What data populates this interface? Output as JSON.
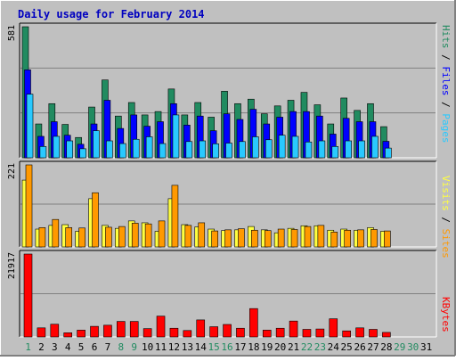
{
  "title": "Daily usage for February 2014",
  "colors": {
    "background": "#c0c0c0",
    "panel": "#c0c0c0",
    "border_dark": "#808080",
    "border_light": "#ffffff",
    "grid": "#808080",
    "title": "#0000c0",
    "hits": "#218b60",
    "files": "#0000ff",
    "pages": "#29c9ff",
    "visits": "#ffff40",
    "sites": "#ff9900",
    "kbytes": "#ff0000",
    "weekday_label": "#000000",
    "weekend_label": "#218b60"
  },
  "chart_data": [
    {
      "type": "bar",
      "name": "hits-files-pages",
      "categories": [
        "1",
        "2",
        "3",
        "4",
        "5",
        "6",
        "7",
        "8",
        "9",
        "10",
        "11",
        "12",
        "13",
        "14",
        "15",
        "16",
        "17",
        "18",
        "19",
        "20",
        "21",
        "22",
        "23",
        "24",
        "25",
        "26",
        "27",
        "28",
        "29",
        "30",
        "31"
      ],
      "weekend": [
        true,
        false,
        false,
        false,
        false,
        false,
        false,
        true,
        true,
        false,
        false,
        false,
        false,
        false,
        true,
        true,
        false,
        false,
        false,
        false,
        false,
        true,
        true,
        false,
        false,
        false,
        false,
        false,
        true,
        true,
        false
      ],
      "ylim": [
        0,
        581
      ],
      "max_label": "581",
      "series_labels": {
        "pages": "Pages",
        "files": "Files",
        "hits": "Hits",
        "sep": " / "
      },
      "series": [
        {
          "name": "Hits",
          "values": [
            581,
            150,
            240,
            148,
            90,
            225,
            345,
            185,
            245,
            190,
            205,
            305,
            190,
            245,
            180,
            295,
            240,
            260,
            195,
            230,
            255,
            290,
            235,
            150,
            265,
            210,
            240,
            138,
            0,
            0,
            0
          ]
        },
        {
          "name": "Files",
          "values": [
            390,
            95,
            160,
            100,
            60,
            150,
            255,
            130,
            190,
            140,
            160,
            240,
            145,
            185,
            120,
            195,
            170,
            215,
            150,
            180,
            205,
            205,
            185,
            105,
            175,
            160,
            160,
            73,
            0,
            0,
            0
          ]
        },
        {
          "name": "Pages",
          "values": [
            282,
            50,
            95,
            75,
            40,
            120,
            75,
            63,
            82,
            93,
            63,
            190,
            72,
            75,
            62,
            65,
            72,
            93,
            80,
            100,
            95,
            70,
            75,
            50,
            75,
            75,
            95,
            43,
            0,
            0,
            0
          ]
        }
      ]
    },
    {
      "type": "bar",
      "name": "visits-sites",
      "categories": [
        "1",
        "2",
        "3",
        "4",
        "5",
        "6",
        "7",
        "8",
        "9",
        "10",
        "11",
        "12",
        "13",
        "14",
        "15",
        "16",
        "17",
        "18",
        "19",
        "20",
        "21",
        "22",
        "23",
        "24",
        "25",
        "26",
        "27",
        "28",
        "29",
        "30",
        "31"
      ],
      "ylim": [
        0,
        221
      ],
      "max_label": "221",
      "series_labels": {
        "sites": "Sites",
        "visits": "Visits",
        "sep": " / "
      },
      "series": [
        {
          "name": "Visits",
          "values": [
            180,
            48,
            58,
            60,
            42,
            130,
            58,
            50,
            70,
            65,
            42,
            130,
            60,
            54,
            48,
            44,
            46,
            55,
            46,
            38,
            50,
            57,
            57,
            45,
            48,
            45,
            52,
            42,
            0,
            0,
            0
          ]
        },
        {
          "name": "Sites",
          "values": [
            221,
            52,
            74,
            52,
            51,
            146,
            53,
            55,
            64,
            62,
            70,
            166,
            58,
            65,
            43,
            46,
            49,
            45,
            44,
            48,
            47,
            55,
            58,
            40,
            45,
            46,
            47,
            43,
            0,
            0,
            0
          ]
        }
      ]
    },
    {
      "type": "bar",
      "name": "kbytes",
      "categories": [
        "1",
        "2",
        "3",
        "4",
        "5",
        "6",
        "7",
        "8",
        "9",
        "10",
        "11",
        "12",
        "13",
        "14",
        "15",
        "16",
        "17",
        "18",
        "19",
        "20",
        "21",
        "22",
        "23",
        "24",
        "25",
        "26",
        "27",
        "28",
        "29",
        "30",
        "31"
      ],
      "ylim": [
        0,
        21917
      ],
      "max_label": "21917",
      "series_labels": {
        "kbytes": "KBytes"
      },
      "series": [
        {
          "name": "KBytes",
          "values": [
            21917,
            2400,
            3360,
            1100,
            1800,
            2800,
            3100,
            4100,
            4100,
            2200,
            5500,
            2300,
            1700,
            4500,
            2700,
            3300,
            2300,
            7500,
            1800,
            2300,
            4200,
            2000,
            2100,
            4800,
            1600,
            2400,
            2000,
            1200,
            0,
            0,
            0
          ]
        }
      ]
    }
  ]
}
